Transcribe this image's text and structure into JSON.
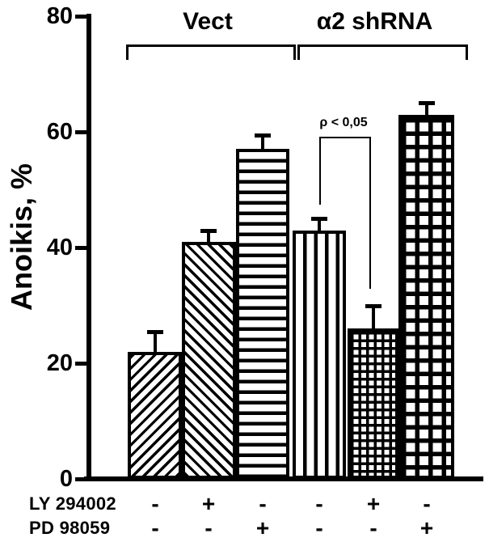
{
  "chart_data": {
    "type": "bar",
    "title": "",
    "ylabel": "Anoikis, %",
    "ylim": [
      0,
      80
    ],
    "yticks": [
      0,
      20,
      40,
      60,
      80
    ],
    "grid": false,
    "legend": "none",
    "groups": [
      {
        "label": "Vect",
        "bar_indexes": [
          0,
          1,
          2
        ]
      },
      {
        "label": "α2 shRNA",
        "bar_indexes": [
          3,
          4,
          5
        ]
      }
    ],
    "categories": [
      "Vect control",
      "Vect + LY 294002",
      "Vect + PD 98059",
      "α2 shRNA control",
      "α2 shRNA + LY 294002",
      "α2 shRNA + PD 98059"
    ],
    "values": [
      22,
      41,
      57,
      43,
      26,
      63
    ],
    "errors": [
      3.5,
      2,
      2.5,
      2,
      4,
      2
    ],
    "patterns": [
      "diagonal-forward",
      "diagonal-back",
      "horizontal-lines",
      "vertical-lines",
      "fine-grid",
      "large-grid"
    ],
    "annotation": {
      "text": "ρ < 0,05",
      "between_bars": [
        3,
        4
      ]
    },
    "treatment_rows": [
      {
        "label": "LY 294002",
        "values": [
          "-",
          "+",
          "-",
          "-",
          "+",
          "-"
        ]
      },
      {
        "label": "PD 98059",
        "values": [
          "-",
          "-",
          "+",
          "-",
          "-",
          "+"
        ]
      }
    ],
    "colors": {
      "foreground": "#000000",
      "background": "#ffffff"
    }
  }
}
